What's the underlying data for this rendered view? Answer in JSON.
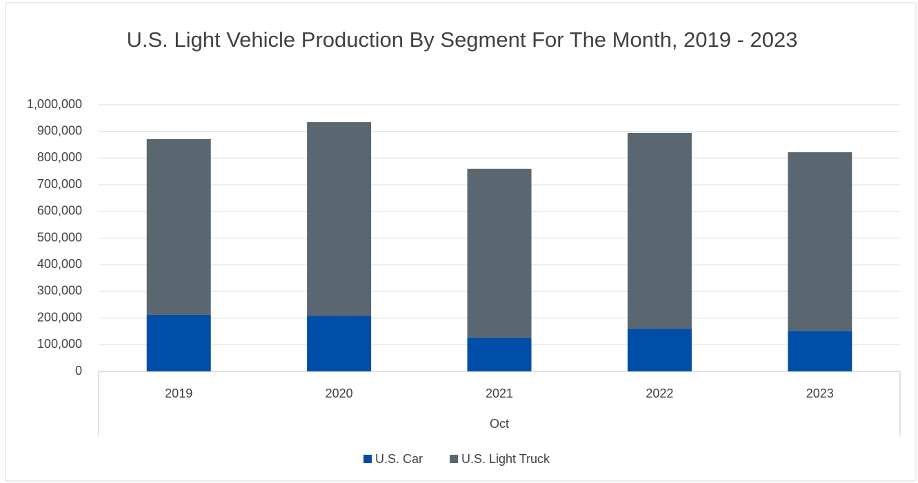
{
  "chart_data": {
    "type": "stacked_bar",
    "title": "U.S. Light Vehicle Production By Segment For The Month, 2019 - 2023",
    "categories": [
      "2019",
      "2020",
      "2021",
      "2022",
      "2023"
    ],
    "xlabel": "Oct",
    "series": [
      {
        "name": "U.S. Car",
        "color": "#004ea8",
        "values": [
          212000,
          209000,
          127000,
          160000,
          152000
        ]
      },
      {
        "name": "U.S. Light Truck",
        "color": "#5b6770",
        "values": [
          659000,
          726000,
          633000,
          734000,
          670000
        ]
      }
    ],
    "ylim": [
      0,
      1000000
    ],
    "yticks": [
      0,
      {
        "value": 100000,
        "label": "100,000"
      },
      {
        "value": 200000,
        "label": "200,000"
      },
      {
        "value": 300000,
        "label": "300,000"
      },
      {
        "value": 400000,
        "label": "400,000"
      },
      {
        "value": 500000,
        "label": "500,000"
      },
      {
        "value": 600000,
        "label": "600,000"
      },
      {
        "value": 700000,
        "label": "700,000"
      },
      {
        "value": 800000,
        "label": "800,000"
      },
      {
        "value": 900000,
        "label": "900,000"
      },
      {
        "value": 1000000,
        "label": "1,000,000"
      }
    ],
    "grid": true,
    "legend": "bottom"
  }
}
